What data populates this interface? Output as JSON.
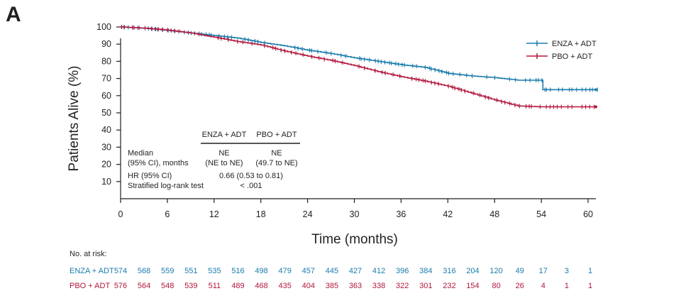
{
  "panel_label": "A",
  "colors": {
    "enza": "#1a7cad",
    "pbo": "#b2173c",
    "axis": "#231f20"
  },
  "chart_data": {
    "type": "line",
    "subtype": "kaplan-meier",
    "title": "",
    "xlabel": "Time (months)",
    "ylabel": "Patients Alive (%)",
    "xlim": [
      0,
      61
    ],
    "ylim": [
      0,
      100
    ],
    "x_ticks": [
      0,
      6,
      12,
      18,
      24,
      30,
      36,
      42,
      48,
      54,
      60
    ],
    "y_ticks": [
      10,
      20,
      30,
      40,
      50,
      60,
      70,
      80,
      90,
      100
    ],
    "grid": false,
    "legend_position": "top-right",
    "series": [
      {
        "name": "ENZA + ADT",
        "color": "#1a7cad",
        "x": [
          0,
          3,
          6,
          9,
          12,
          15,
          18,
          21,
          24,
          27,
          30,
          33,
          36,
          39,
          42,
          45,
          48,
          51,
          54,
          54.2,
          61
        ],
        "y": [
          100,
          99.3,
          98,
          96.5,
          95,
          93.5,
          91,
          89,
          86.5,
          84.5,
          82,
          80,
          78,
          76.5,
          73,
          71.5,
          70.5,
          69,
          69,
          63.5,
          63.5
        ]
      },
      {
        "name": "PBO + ADT",
        "color": "#b2173c",
        "x": [
          0,
          3,
          6,
          9,
          12,
          15,
          18,
          21,
          24,
          27,
          30,
          33,
          36,
          39,
          42,
          45,
          48,
          51,
          54,
          61
        ],
        "y": [
          100,
          99.3,
          98.2,
          96.5,
          94,
          91.5,
          89.5,
          86,
          83,
          80.5,
          77.5,
          74,
          71,
          68.5,
          65.5,
          61.5,
          57.5,
          54,
          53.5,
          53.5
        ]
      }
    ],
    "stats_table": {
      "col_headers": [
        "ENZA + ADT",
        "PBO + ADT"
      ],
      "median_label": "Median",
      "median_sublabel": "(95% CI), months",
      "median_enza": "NE",
      "median_enza_ci": "(NE to NE)",
      "median_pbo": "NE",
      "median_pbo_ci": "(49.7 to NE)",
      "hr_label": "HR (95% CI)",
      "hr_value": "0.66 (0.53 to 0.81)",
      "logrank_label": "Stratified log-rank test",
      "logrank_value": "< .001"
    },
    "risk_table": {
      "title": "No. at risk:",
      "times": [
        0,
        3,
        6,
        9,
        12,
        15,
        18,
        21,
        24,
        27,
        30,
        33,
        36,
        39,
        42,
        45,
        48,
        51,
        54,
        57,
        60
      ],
      "rows": [
        {
          "label": "ENZA + ADT",
          "counts": [
            "574",
            "568",
            "559",
            "551",
            "535",
            "516",
            "498",
            "479",
            "457",
            "445",
            "427",
            "412",
            "396",
            "384",
            "316",
            "204",
            "120",
            "49",
            "17",
            "3",
            "1"
          ]
        },
        {
          "label": "PBO + ADT",
          "counts": [
            "576",
            "564",
            "548",
            "539",
            "511",
            "489",
            "468",
            "435",
            "404",
            "385",
            "363",
            "338",
            "322",
            "301",
            "232",
            "154",
            "80",
            "26",
            "4",
            "1",
            "1"
          ]
        }
      ]
    }
  }
}
